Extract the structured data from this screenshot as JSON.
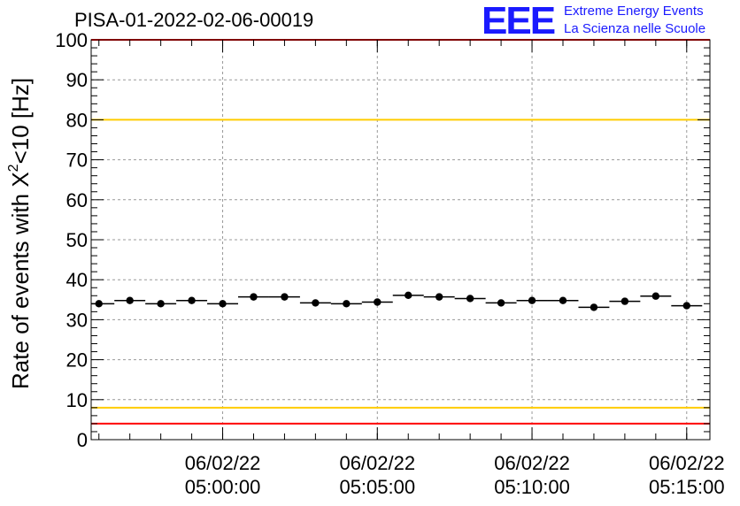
{
  "chart_data": {
    "type": "scatter",
    "title": "PISA-01-2022-02-06-00019",
    "ylabel_prefix": "Rate of events with ",
    "ylabel_chi": "X",
    "ylabel_sup": "2",
    "ylabel_suffix": "<10 [Hz]",
    "ylim": [
      0,
      100
    ],
    "yticks": [
      "0",
      "10",
      "20",
      "30",
      "40",
      "50",
      "60",
      "70",
      "80",
      "90",
      "100"
    ],
    "xlim": [
      "04:55:45",
      "05:15:45"
    ],
    "xticks": [
      {
        "date": "06/02/22",
        "time": "05:00:00"
      },
      {
        "date": "06/02/22",
        "time": "05:05:00"
      },
      {
        "date": "06/02/22",
        "time": "05:10:00"
      },
      {
        "date": "06/02/22",
        "time": "05:15:00"
      }
    ],
    "grid": true,
    "bin_width_s": 60,
    "points": [
      {
        "x": "04:56:00",
        "y": 34.0
      },
      {
        "x": "04:57:00",
        "y": 34.8
      },
      {
        "x": "04:58:00",
        "y": 34.0
      },
      {
        "x": "04:59:00",
        "y": 34.8
      },
      {
        "x": "05:00:00",
        "y": 34.0
      },
      {
        "x": "05:01:00",
        "y": 35.7
      },
      {
        "x": "05:02:00",
        "y": 35.7
      },
      {
        "x": "05:03:00",
        "y": 34.2
      },
      {
        "x": "05:04:00",
        "y": 34.0
      },
      {
        "x": "05:05:00",
        "y": 34.4
      },
      {
        "x": "05:06:00",
        "y": 36.1
      },
      {
        "x": "05:07:00",
        "y": 35.7
      },
      {
        "x": "05:08:00",
        "y": 35.3
      },
      {
        "x": "05:09:00",
        "y": 34.2
      },
      {
        "x": "05:10:00",
        "y": 34.8
      },
      {
        "x": "05:11:00",
        "y": 34.8
      },
      {
        "x": "05:12:00",
        "y": 33.1
      },
      {
        "x": "05:13:00",
        "y": 34.6
      },
      {
        "x": "05:14:00",
        "y": 35.9
      },
      {
        "x": "05:15:00",
        "y": 33.5
      }
    ],
    "reference_lines": [
      {
        "y": 100,
        "color": "#ff0000"
      },
      {
        "y": 80,
        "color": "#ffcc00"
      },
      {
        "y": 8,
        "color": "#ffcc00"
      },
      {
        "y": 4,
        "color": "#ff0000"
      }
    ]
  },
  "logo": {
    "mark": "EEE",
    "line1": "Extreme Energy Events",
    "line2": "La Scienza nelle Scuole",
    "color": "#1a1aff"
  }
}
